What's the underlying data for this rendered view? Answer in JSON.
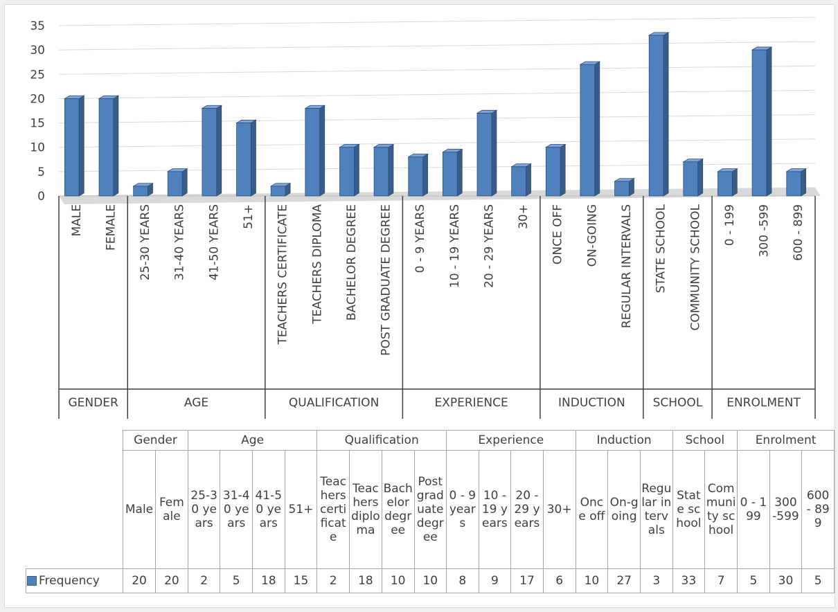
{
  "chart_data": {
    "type": "bar",
    "style": "3d-column",
    "y_ticks": [
      0,
      5,
      10,
      15,
      20,
      25,
      30,
      35
    ],
    "ylim": [
      0,
      35
    ],
    "grid": true,
    "bar_color": "#4f81bd",
    "bar_color_dark": "#385d8a",
    "groups": [
      {
        "axis_label": "GENDER",
        "table_label": "Gender",
        "categories": [
          {
            "axis_label": "MALE",
            "table_label": "Male",
            "value": 20
          },
          {
            "axis_label": "FEMALE",
            "table_label": "Female",
            "value": 20
          }
        ]
      },
      {
        "axis_label": "AGE",
        "table_label": "Age",
        "categories": [
          {
            "axis_label": "25-30 YEARS",
            "table_label": "25-30 years",
            "value": 2
          },
          {
            "axis_label": "31-40 YEARS",
            "table_label": "31-40 years",
            "value": 5
          },
          {
            "axis_label": "41-50 YEARS",
            "table_label": "41-50 years",
            "value": 18
          },
          {
            "axis_label": "51+",
            "table_label": "51+",
            "value": 15
          }
        ]
      },
      {
        "axis_label": "QUALIFICATION",
        "table_label": "Qualification",
        "categories": [
          {
            "axis_label": "TEACHERS CERTIFICATE",
            "table_label": "Teachers certificate",
            "value": 2
          },
          {
            "axis_label": "TEACHERS DIPLOMA",
            "table_label": "Teachers diploma",
            "value": 18
          },
          {
            "axis_label": "BACHELOR DEGREE",
            "table_label": "Bachelor degree",
            "value": 10
          },
          {
            "axis_label": "POST GRADUATE DEGREE",
            "table_label": "Post graduate degree",
            "value": 10
          }
        ]
      },
      {
        "axis_label": "EXPERIENCE",
        "table_label": "Experience",
        "categories": [
          {
            "axis_label": "0 - 9 YEARS",
            "table_label": "0 - 9 years",
            "value": 8
          },
          {
            "axis_label": "10 - 19 YEARS",
            "table_label": "10 - 19 years",
            "value": 9
          },
          {
            "axis_label": "20 - 29 YEARS",
            "table_label": "20 - 29 years",
            "value": 17
          },
          {
            "axis_label": "30+",
            "table_label": "30+",
            "value": 6
          }
        ]
      },
      {
        "axis_label": "INDUCTION",
        "table_label": "Induction",
        "categories": [
          {
            "axis_label": "ONCE OFF",
            "table_label": "Once off",
            "value": 10
          },
          {
            "axis_label": "ON-GOING",
            "table_label": "On-going",
            "value": 27
          },
          {
            "axis_label": "REGULAR INTERVALS",
            "table_label": "Regular intervals",
            "value": 3
          }
        ]
      },
      {
        "axis_label": "SCHOOL",
        "table_label": "School",
        "categories": [
          {
            "axis_label": "STATE SCHOOL",
            "table_label": "State school",
            "value": 33
          },
          {
            "axis_label": "COMMUNITY SCHOOL",
            "table_label": "Community school",
            "value": 7
          }
        ]
      },
      {
        "axis_label": "ENROLMENT",
        "table_label": "Enrolment",
        "categories": [
          {
            "axis_label": "0 - 199",
            "table_label": "0 - 199",
            "value": 5
          },
          {
            "axis_label": "300 -599",
            "table_label": "300 -599",
            "value": 30
          },
          {
            "axis_label": "600 - 899",
            "table_label": "600 - 899",
            "value": 5
          }
        ]
      }
    ],
    "legend": {
      "series_name": "Frequency",
      "placement": "data-table"
    }
  }
}
